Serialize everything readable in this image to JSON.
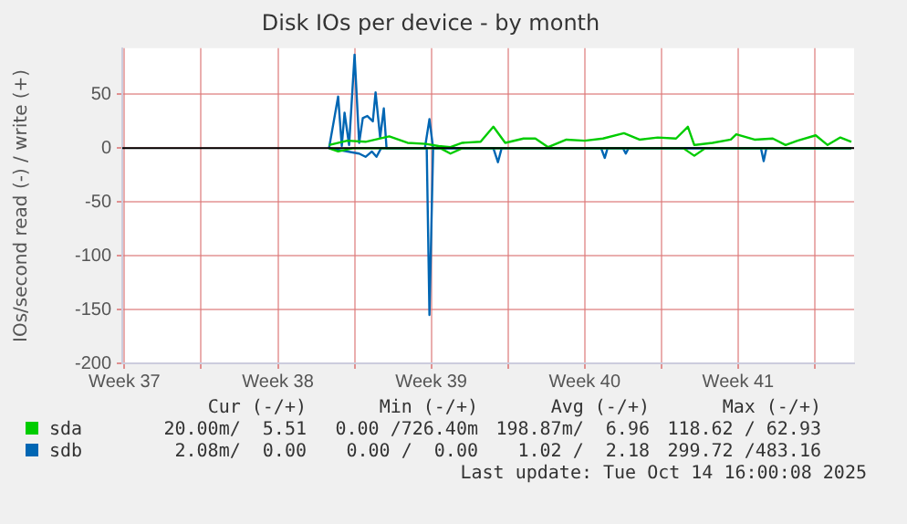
{
  "chart_data": {
    "type": "line",
    "title": "Disk IOs per device - by month",
    "ylabel": "IOs/second read (-) / write (+)",
    "xlim": [
      "2025-09-11T09:36",
      "2025-10-14T19:00"
    ],
    "xticks": [
      {
        "value": "2025-09-11T12:00",
        "label": "Week 37"
      },
      {
        "value": "2025-09-15",
        "label": null
      },
      {
        "value": "2025-09-18T12:00",
        "label": "Week 38"
      },
      {
        "value": "2025-09-22",
        "label": null
      },
      {
        "value": "2025-09-25T12:00",
        "label": "Week 39"
      },
      {
        "value": "2025-09-29",
        "label": null
      },
      {
        "value": "2025-10-02T12:00",
        "label": "Week 40"
      },
      {
        "value": "2025-10-06",
        "label": null
      },
      {
        "value": "2025-10-09T12:00",
        "label": "Week 41"
      },
      {
        "value": "2025-10-13",
        "label": null
      }
    ],
    "ylim": [
      -200,
      93
    ],
    "yticks": [
      -200,
      -150,
      -100,
      -50,
      0,
      50
    ],
    "grid": true,
    "legend": "bottom",
    "marker": "none",
    "line_style": "solid",
    "ref_lines": [
      {
        "axis": "y",
        "value": 0,
        "color": "#000000"
      }
    ],
    "series": [
      {
        "name": "sda",
        "color": "#00cc00",
        "x": [
          "2025-09-20T20:00",
          "2025-09-21T16:00",
          "2025-09-22T12:00",
          "2025-09-23T14:00",
          "2025-09-24T10:00",
          "2025-09-25T06:00",
          "2025-09-25T20:00",
          "2025-09-26T09:00",
          "2025-09-26T22:00",
          "2025-09-27T18:00",
          "2025-09-28T08:00",
          "2025-09-28T21:00",
          "2025-09-29T17:00",
          "2025-09-30T06:00",
          "2025-09-30T20:00",
          "2025-10-01T16:00",
          "2025-10-02T12:00",
          "2025-10-03T08:00",
          "2025-10-04T07:00",
          "2025-10-05T00:00",
          "2025-10-05T20:00",
          "2025-10-06T16:00",
          "2025-10-07T05:00",
          "2025-10-07T12:00",
          "2025-10-08T08:00",
          "2025-10-09T04:00",
          "2025-10-09T10:00",
          "2025-10-10T06:00",
          "2025-10-11T02:00",
          "2025-10-11T16:00",
          "2025-10-12T05:00",
          "2025-10-13T01:00",
          "2025-10-13T14:00",
          "2025-10-14T04:00",
          "2025-10-14T16:00"
        ],
        "values": [
          3,
          7,
          6,
          11,
          5,
          4,
          2,
          1,
          5,
          6,
          20,
          5,
          9,
          9,
          1,
          8,
          7,
          9,
          14,
          8,
          10,
          9,
          20,
          3,
          5,
          8,
          13,
          8,
          9,
          3,
          7,
          12,
          3,
          10,
          6
        ]
      },
      {
        "color": "#00cc00",
        "x": [
          "2025-09-20T20:00",
          "2025-09-21T06:00",
          "2025-09-21T22:00",
          "2025-09-25T22:00",
          "2025-09-26T09:00",
          "2025-09-26T22:00",
          "2025-10-07T00:00",
          "2025-10-07T12:00",
          "2025-10-08T00:00",
          "2025-10-14T16:00"
        ],
        "values": [
          0,
          -3,
          0,
          0,
          -5,
          0,
          0,
          -7,
          0,
          0
        ]
      },
      {
        "name": "sdb",
        "color": "#0066b3",
        "x": [
          "2025-09-20T20:00",
          "2025-09-21T06:00",
          "2025-09-21T10:00",
          "2025-09-21T13:00",
          "2025-09-21T18:00",
          "2025-09-22T00:00",
          "2025-09-22T05:00",
          "2025-09-22T09:00",
          "2025-09-22T14:00",
          "2025-09-22T20:00",
          "2025-09-22T23:00",
          "2025-09-23T04:00",
          "2025-09-23T08:00",
          "2025-09-23T11:00",
          "2025-09-25T05:00",
          "2025-09-25T10:00",
          "2025-09-25T14:00",
          "2025-10-14T16:00"
        ],
        "values": [
          0,
          48,
          2,
          33,
          3,
          87,
          5,
          28,
          30,
          25,
          52,
          10,
          37,
          0,
          0,
          27,
          0,
          0
        ]
      },
      {
        "color": "#0066b3",
        "x": [
          "2025-09-20T20:00",
          "2025-09-22T05:00",
          "2025-09-22T12:00",
          "2025-09-22T19:00",
          "2025-09-23T00:00",
          "2025-09-23T05:00",
          "2025-09-25T07:00",
          "2025-09-25T10:00",
          "2025-09-25T14:00",
          "2025-09-28T08:00",
          "2025-09-28T13:00",
          "2025-09-28T17:00",
          "2025-10-03T06:00",
          "2025-10-03T10:00",
          "2025-10-03T13:00",
          "2025-10-04T06:00",
          "2025-10-04T09:00",
          "2025-10-04T12:00",
          "2025-10-10T13:00",
          "2025-10-10T16:00",
          "2025-10-10T19:00",
          "2025-10-14T16:00"
        ],
        "values": [
          0,
          -5,
          -8,
          -3,
          -8,
          0,
          0,
          -155,
          0,
          0,
          -13,
          0,
          0,
          -9,
          0,
          0,
          -5,
          0,
          0,
          -12,
          0,
          0
        ]
      }
    ],
    "annotations": [
      "Cur (-/+)",
      "Min (-/+)",
      "Avg (-/+)",
      "Max (-/+)",
      "20.00m/  5.51",
      "0.00 /726.40m",
      "198.87m/  6.96",
      "118.62 / 62.93",
      "2.08m/  0.00",
      "0.00 /  0.00",
      "1.02 /  2.18",
      "299.72 /483.16",
      "Last update: Tue Oct 14 16:00:08 2025"
    ]
  }
}
